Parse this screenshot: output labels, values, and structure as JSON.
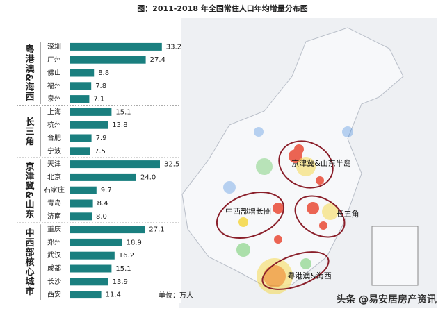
{
  "chart_data": {
    "type": "bar",
    "title": "图：2011-2018 年全国常住人口年均增量分布图",
    "color": "#1a7f7f",
    "unit_note": "单位：万人",
    "groups": [
      {
        "name": "粤港澳&海西",
        "categories": [
          "深圳",
          "广州",
          "佛山",
          "福州",
          "泉州"
        ],
        "values": [
          33.2,
          27.4,
          8.8,
          7.8,
          7.1
        ],
        "value_labels": [
          "33.2",
          "27.4",
          "8.8",
          "7.8",
          "7.1"
        ]
      },
      {
        "name": "长三角",
        "categories": [
          "上海",
          "杭州",
          "合肥",
          "宁波"
        ],
        "values": [
          15.1,
          13.8,
          7.9,
          7.5
        ],
        "value_labels": [
          "15.1",
          "13.8",
          "7.9",
          "7.5"
        ]
      },
      {
        "name": "京津冀&山东",
        "categories": [
          "天津",
          "北京",
          "石家庄",
          "青岛",
          "济南"
        ],
        "values": [
          32.5,
          24,
          9.7,
          8.4,
          8
        ],
        "value_labels": [
          "32.5",
          "24.0",
          "9.7",
          "8.4",
          "8.0"
        ]
      },
      {
        "name": "中西部核心城市",
        "categories": [
          "重庆",
          "郑州",
          "武汉",
          "成都",
          "长沙",
          "西安"
        ],
        "values": [
          27.1,
          18.9,
          16.2,
          15.1,
          13.9,
          11.4
        ],
        "value_labels": [
          "27.1",
          "18.9",
          "16.2",
          "15.1",
          "13.9",
          "11.4"
        ]
      }
    ],
    "annotations": [
      "京津冀&山东半岛",
      "中西部增长圈",
      "长三角",
      "粤港澳&海西"
    ],
    "watermark": "头条 @易安居房产资讯"
  }
}
